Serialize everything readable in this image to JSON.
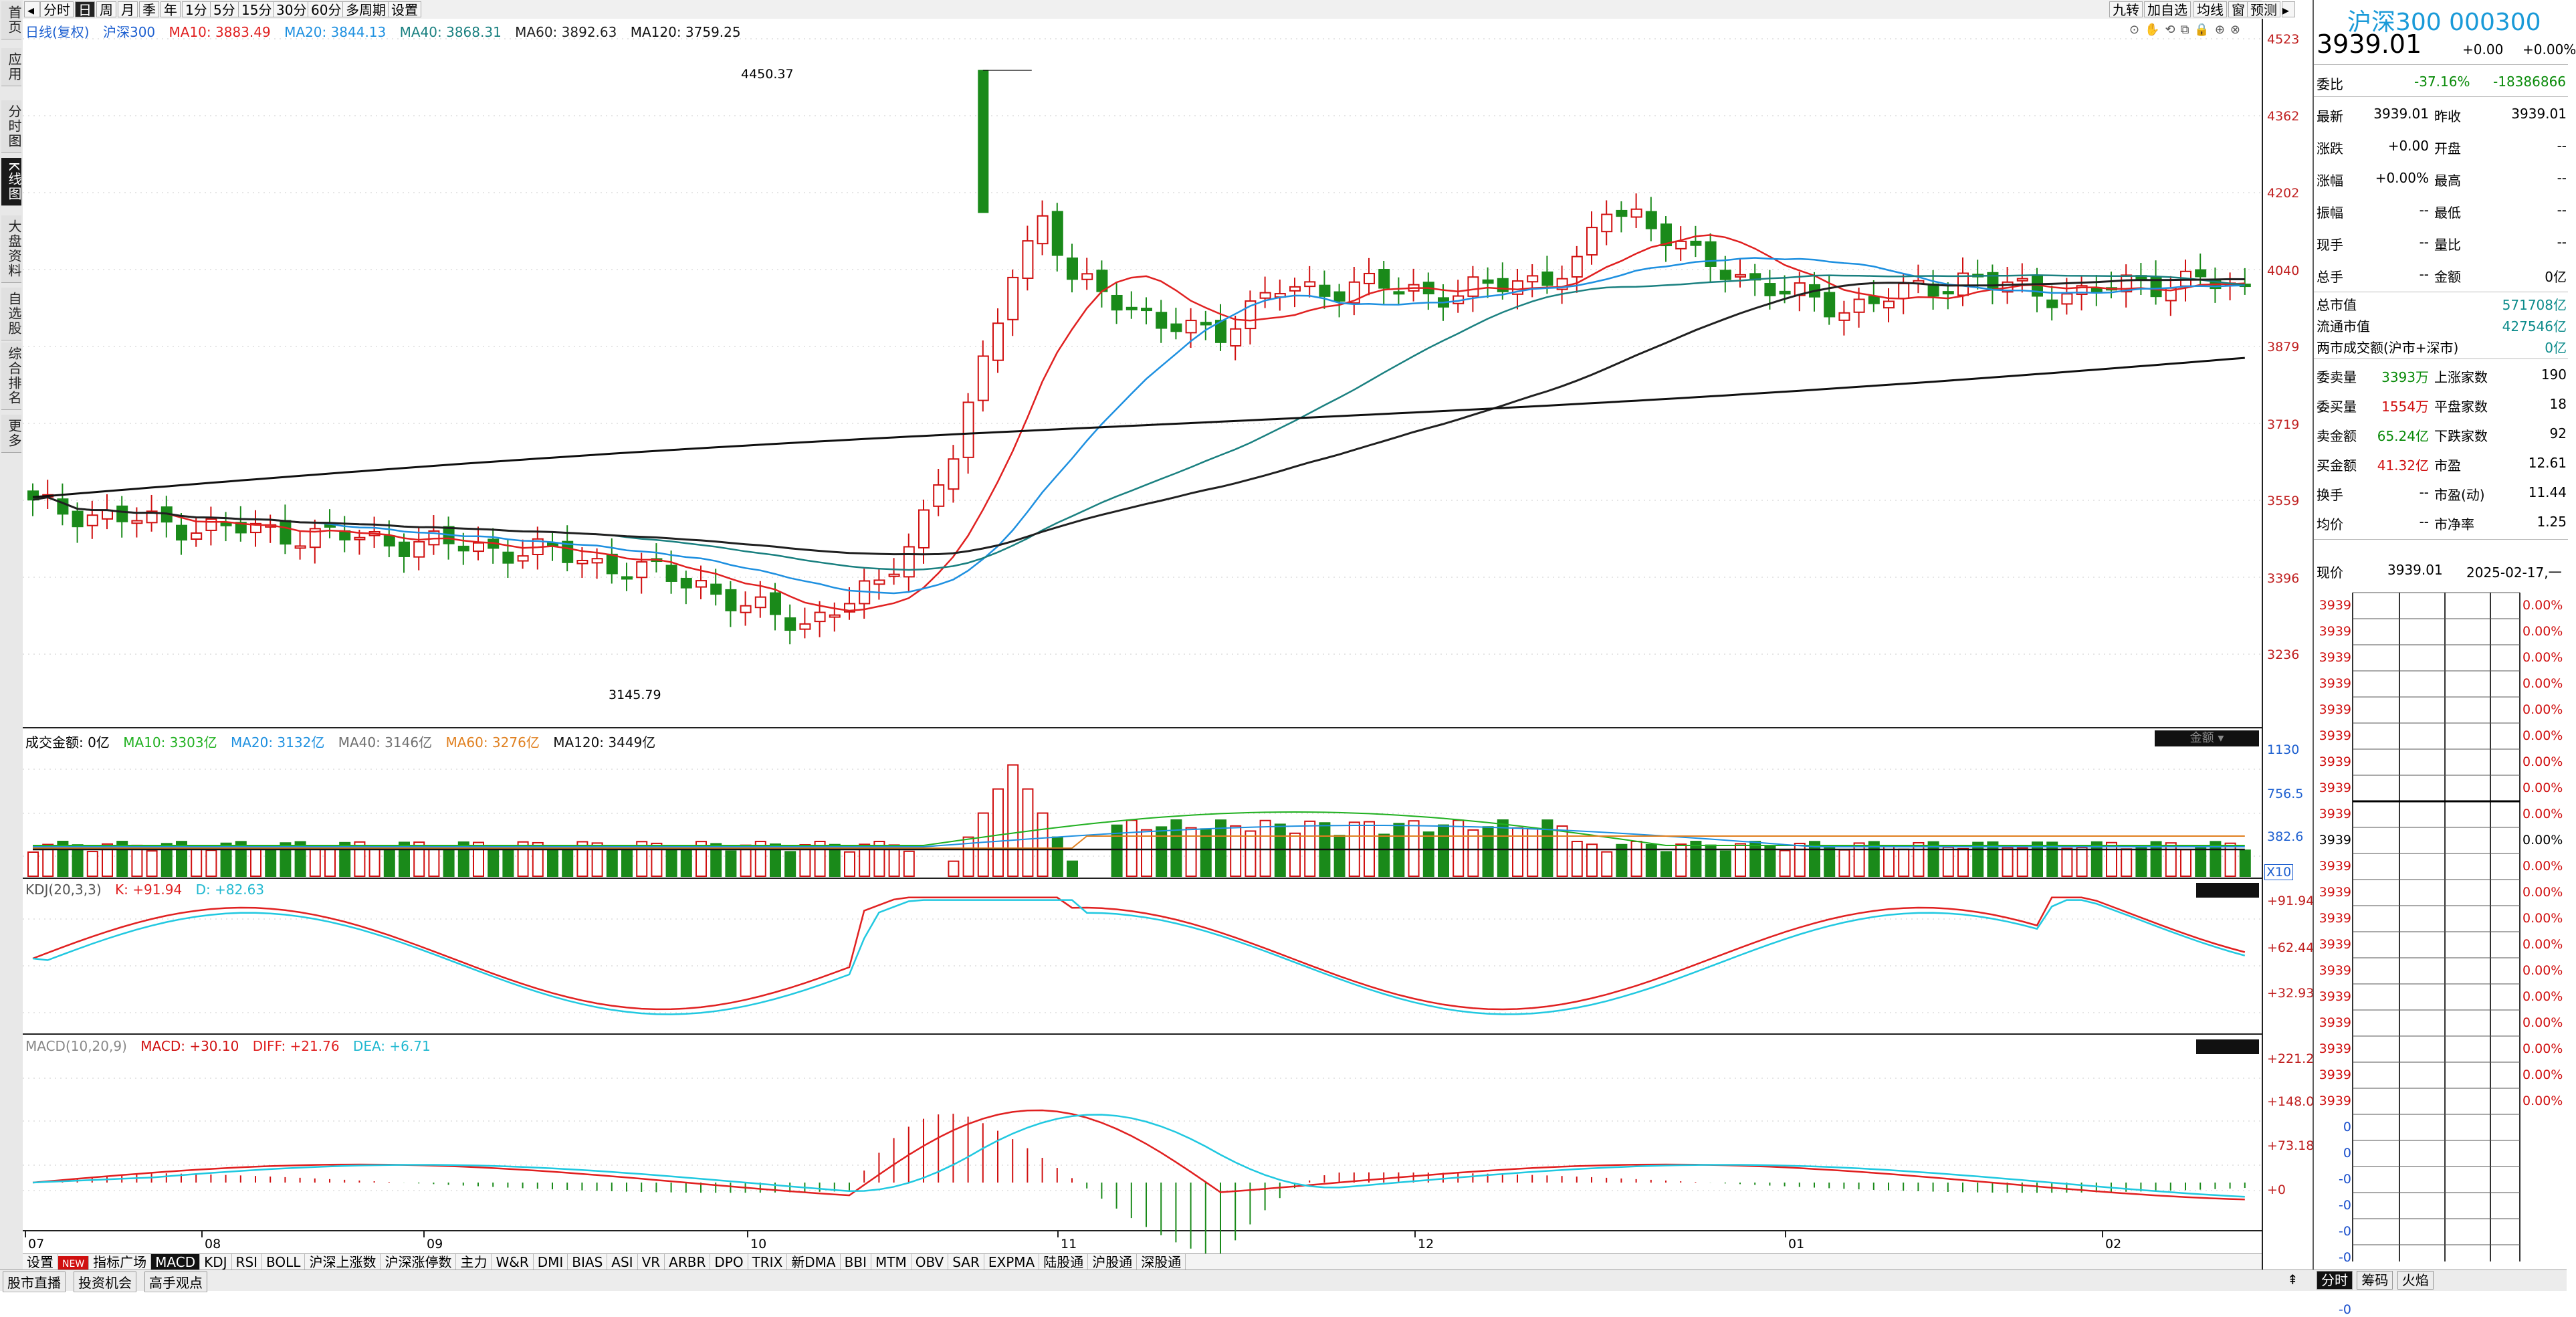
{
  "sidebar": {
    "items": [
      "首页",
      "应用",
      "分时图",
      "K线图",
      "大盘资料",
      "自选股",
      "综合排名",
      "更多"
    ],
    "active_index": 3
  },
  "toolbar": {
    "buttons": [
      "分时",
      "日",
      "周",
      "月",
      "季",
      "年",
      "1分",
      "5分",
      "15分",
      "30分",
      "60分",
      "多周期",
      "设置"
    ],
    "active_index": 1,
    "right_buttons": [
      "九转",
      "加自选",
      "均线",
      "窗",
      "预测"
    ]
  },
  "legend_main": {
    "title": "日线(复权)",
    "stock": "沪深300",
    "ma10": "MA10: 3883.49",
    "ma20": "MA20: 3844.13",
    "ma40": "MA40: 3868.31",
    "ma60": "MA60: 3892.63",
    "ma120": "MA120: 3759.25"
  },
  "legend_vol": {
    "title": "成交金额: 0亿",
    "ma10": "MA10: 3303亿",
    "ma20": "MA20: 3132亿",
    "ma40": "MA40: 3146亿",
    "ma60": "MA60: 3276亿",
    "ma120": "MA120: 3449亿",
    "badge": "金额"
  },
  "legend_kdj": {
    "title": "KDJ(20,3,3)",
    "k": "K: +91.94",
    "d": "D: +82.63"
  },
  "legend_macd": {
    "title": "MACD(10,20,9)",
    "macd": "MACD: +30.10",
    "diff": "DIFF: +21.76",
    "dea": "DEA: +6.71"
  },
  "annotations": {
    "high": "4450.37",
    "low": "3145.79"
  },
  "price_axis": [
    "4523",
    "4362",
    "4202",
    "4040",
    "3879",
    "3719",
    "3559",
    "3396",
    "3236"
  ],
  "vol_axis": [
    "1130",
    "756.5",
    "382.6",
    "X10"
  ],
  "kdj_axis": [
    "+91.94",
    "+62.44",
    "+32.93"
  ],
  "macd_axis": [
    "+221.2",
    "+148.0",
    "+73.18",
    "+0"
  ],
  "months": [
    "07",
    "08",
    "09",
    "10",
    "11",
    "12",
    "01",
    "02"
  ],
  "indicator_tabs": [
    "设置",
    "NEW",
    "指标广场",
    "MACD",
    "KDJ",
    "RSI",
    "BOLL",
    "沪深上涨数",
    "沪深涨停数",
    "主力",
    "W&R",
    "DMI",
    "BIAS",
    "ASI",
    "VR",
    "ARBR",
    "DPO",
    "TRIX",
    "新DMA",
    "BBI",
    "MTM",
    "OBV",
    "SAR",
    "EXPMA",
    "陆股通",
    "沪股通",
    "深股通"
  ],
  "active_tab": "MACD",
  "bottom_links": [
    "股市直播",
    "投资机会",
    "高手观点"
  ],
  "panel": {
    "name": "沪深300 000300",
    "price": "3939.01",
    "change": "+0.00",
    "change_pct": "+0.00%",
    "weibi_label": "委比",
    "weibi_pct": "-37.16%",
    "weibi_val": "-18386866",
    "rows": [
      {
        "l1": "最新",
        "v1": "3939.01",
        "l2": "昨收",
        "v2": "3939.01"
      },
      {
        "l1": "涨跌",
        "v1": "+0.00",
        "l2": "开盘",
        "v2": "--"
      },
      {
        "l1": "涨幅",
        "v1": "+0.00%",
        "l2": "最高",
        "v2": "--"
      },
      {
        "l1": "振幅",
        "v1": "--",
        "l2": "最低",
        "v2": "--"
      },
      {
        "l1": "现手",
        "v1": "--",
        "l2": "量比",
        "v2": "--"
      },
      {
        "l1": "总手",
        "v1": "--",
        "l2": "金额",
        "v2": "0亿"
      }
    ],
    "cap": [
      {
        "l": "总市值",
        "v": "571708亿"
      },
      {
        "l": "流通市值",
        "v": "427546亿"
      },
      {
        "l": "两市成交额(沪市+深市)",
        "v": "0亿"
      }
    ],
    "stats": [
      {
        "l1": "委卖量",
        "v1": "3393万",
        "l2": "上涨家数",
        "v2": "190"
      },
      {
        "l1": "委买量",
        "v1": "1554万",
        "l2": "平盘家数",
        "v2": "18"
      },
      {
        "l1": "卖金额",
        "v1": "65.24亿",
        "l2": "下跌家数",
        "v2": "92"
      },
      {
        "l1": "买金额",
        "v1": "41.32亿",
        "l2": "市盈",
        "v2": "12.61"
      },
      {
        "l1": "换手",
        "v1": "--",
        "l2": "市盈(动)",
        "v2": "11.44"
      },
      {
        "l1": "均价",
        "v1": "--",
        "l2": "市净率",
        "v2": "1.25"
      }
    ],
    "now_label": "现价",
    "now_price": "3939.01",
    "date": "2025-02-17,一",
    "depth_prices": [
      "3939",
      "3939",
      "3939",
      "3939",
      "3939",
      "3939",
      "3939",
      "3939",
      "3939",
      "3939",
      "3939",
      "3939",
      "3939",
      "3939",
      "3939",
      "3939",
      "3939",
      "3939",
      "3939",
      "3939"
    ],
    "depth_pcts": [
      "0.00%",
      "0.00%",
      "0.00%",
      "0.00%",
      "0.00%",
      "0.00%",
      "0.00%",
      "0.00%",
      "0.00%",
      "0.00%",
      "0.00%",
      "0.00%",
      "0.00%",
      "0.00%",
      "0.00%",
      "0.00%",
      "0.00%",
      "0.00%",
      "0.00%",
      "0.00%"
    ],
    "depth_small": [
      "0",
      "0",
      "-0",
      "-0",
      "-0",
      "-0",
      "-0",
      "-0"
    ],
    "bottom_tabs": [
      "分时",
      "筹码",
      "火焰"
    ],
    "bottom_icon": "pin-icon"
  },
  "colors": {
    "up": "#d01010",
    "down": "#1a8a1a",
    "ma10": "#e02020",
    "ma20": "#1e90e0",
    "ma40": "#1a8080",
    "ma60": "#202020",
    "ma120": "#101010",
    "kdj_k": "#e02020",
    "kdj_d": "#20c8e0"
  }
}
